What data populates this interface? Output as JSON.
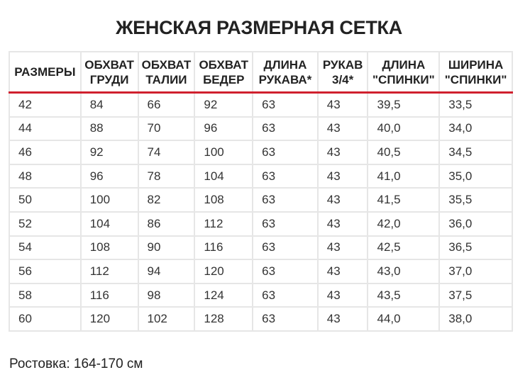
{
  "title": "ЖЕНСКАЯ РАЗМЕРНАЯ СЕТКА",
  "headers": [
    [
      "РАЗМЕРЫ",
      ""
    ],
    [
      "ОБХВАТ",
      "ГРУДИ"
    ],
    [
      "ОБХВАТ",
      "ТАЛИИ"
    ],
    [
      "ОБХВАТ",
      "БЕДЕР"
    ],
    [
      "ДЛИНА",
      "РУКАВА*"
    ],
    [
      "РУКАВ",
      "3/4*"
    ],
    [
      "ДЛИНА",
      "\"СПИНКИ\""
    ],
    [
      "ШИРИНА",
      "\"СПИНКИ\""
    ]
  ],
  "rows": [
    [
      "42",
      "84",
      "66",
      "92",
      "63",
      "43",
      "39,5",
      "33,5"
    ],
    [
      "44",
      "88",
      "70",
      "96",
      "63",
      "43",
      "40,0",
      "34,0"
    ],
    [
      "46",
      "92",
      "74",
      "100",
      "63",
      "43",
      "40,5",
      "34,5"
    ],
    [
      "48",
      "96",
      "78",
      "104",
      "63",
      "43",
      "41,0",
      "35,0"
    ],
    [
      "50",
      "100",
      "82",
      "108",
      "63",
      "43",
      "41,5",
      "35,5"
    ],
    [
      "52",
      "104",
      "86",
      "112",
      "63",
      "43",
      "42,0",
      "36,0"
    ],
    [
      "54",
      "108",
      "90",
      "116",
      "63",
      "43",
      "42,5",
      "36,5"
    ],
    [
      "56",
      "112",
      "94",
      "120",
      "63",
      "43",
      "43,0",
      "37,0"
    ],
    [
      "58",
      "116",
      "98",
      "124",
      "63",
      "43",
      "43,5",
      "37,5"
    ],
    [
      "60",
      "120",
      "102",
      "128",
      "63",
      "43",
      "44,0",
      "38,0"
    ]
  ],
  "note": "Ростовка: 164-170 см",
  "colors": {
    "accent": "#d0202e"
  }
}
